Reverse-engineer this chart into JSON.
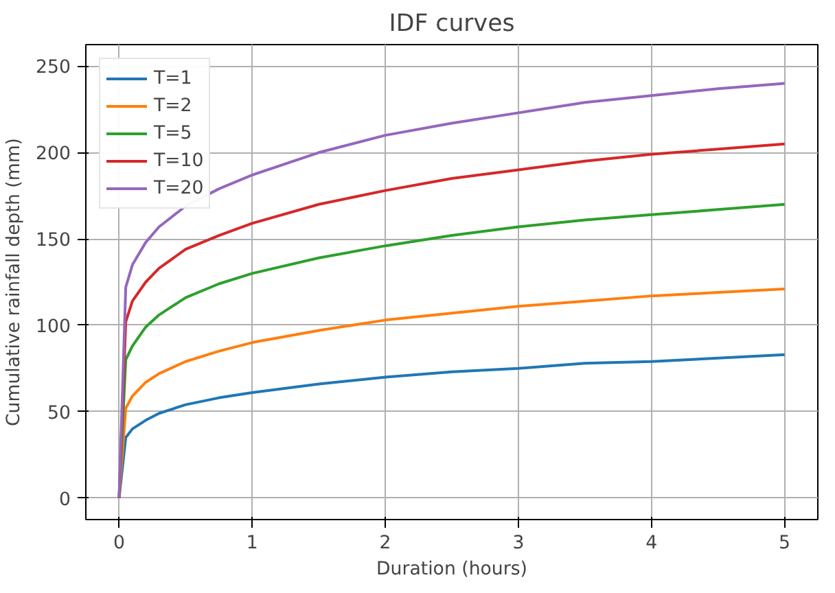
{
  "chart_data": {
    "type": "line",
    "title": "IDF curves",
    "xlabel": "Duration (hours)",
    "ylabel": "Cumulative rainfall depth (mm)",
    "x": [
      0,
      0.05,
      0.1,
      0.2,
      0.3,
      0.5,
      0.75,
      1,
      1.5,
      2,
      2.5,
      3,
      3.5,
      4,
      4.5,
      5
    ],
    "series": [
      {
        "name": "T=1",
        "color": "#1f77b4",
        "values": [
          0,
          35,
          40,
          45,
          49,
          54,
          58,
          61,
          66,
          70,
          73,
          75,
          78,
          79,
          81,
          83
        ]
      },
      {
        "name": "T=2",
        "color": "#ff7f0e",
        "values": [
          0,
          52,
          59,
          67,
          72,
          79,
          85,
          90,
          97,
          103,
          107,
          111,
          114,
          117,
          119,
          121
        ]
      },
      {
        "name": "T=5",
        "color": "#2ca02c",
        "values": [
          0,
          80,
          88,
          99,
          106,
          116,
          124,
          130,
          139,
          146,
          152,
          157,
          161,
          164,
          167,
          170
        ]
      },
      {
        "name": "T=10",
        "color": "#d62728",
        "values": [
          0,
          102,
          114,
          125,
          133,
          144,
          152,
          159,
          170,
          178,
          185,
          190,
          195,
          199,
          202,
          205
        ]
      },
      {
        "name": "T=20",
        "color": "#9467bd",
        "values": [
          0,
          122,
          135,
          148,
          157,
          169,
          179,
          187,
          200,
          210,
          217,
          223,
          229,
          233,
          237,
          240
        ]
      }
    ],
    "xlim": [
      -0.25,
      5.25
    ],
    "ylim": [
      -12.5,
      262.5
    ],
    "xticks": [
      0,
      1,
      2,
      3,
      4,
      5
    ],
    "yticks": [
      0,
      50,
      100,
      150,
      200,
      250
    ],
    "grid": true,
    "legend": "top left",
    "line_style": "solid",
    "marker": "none"
  }
}
